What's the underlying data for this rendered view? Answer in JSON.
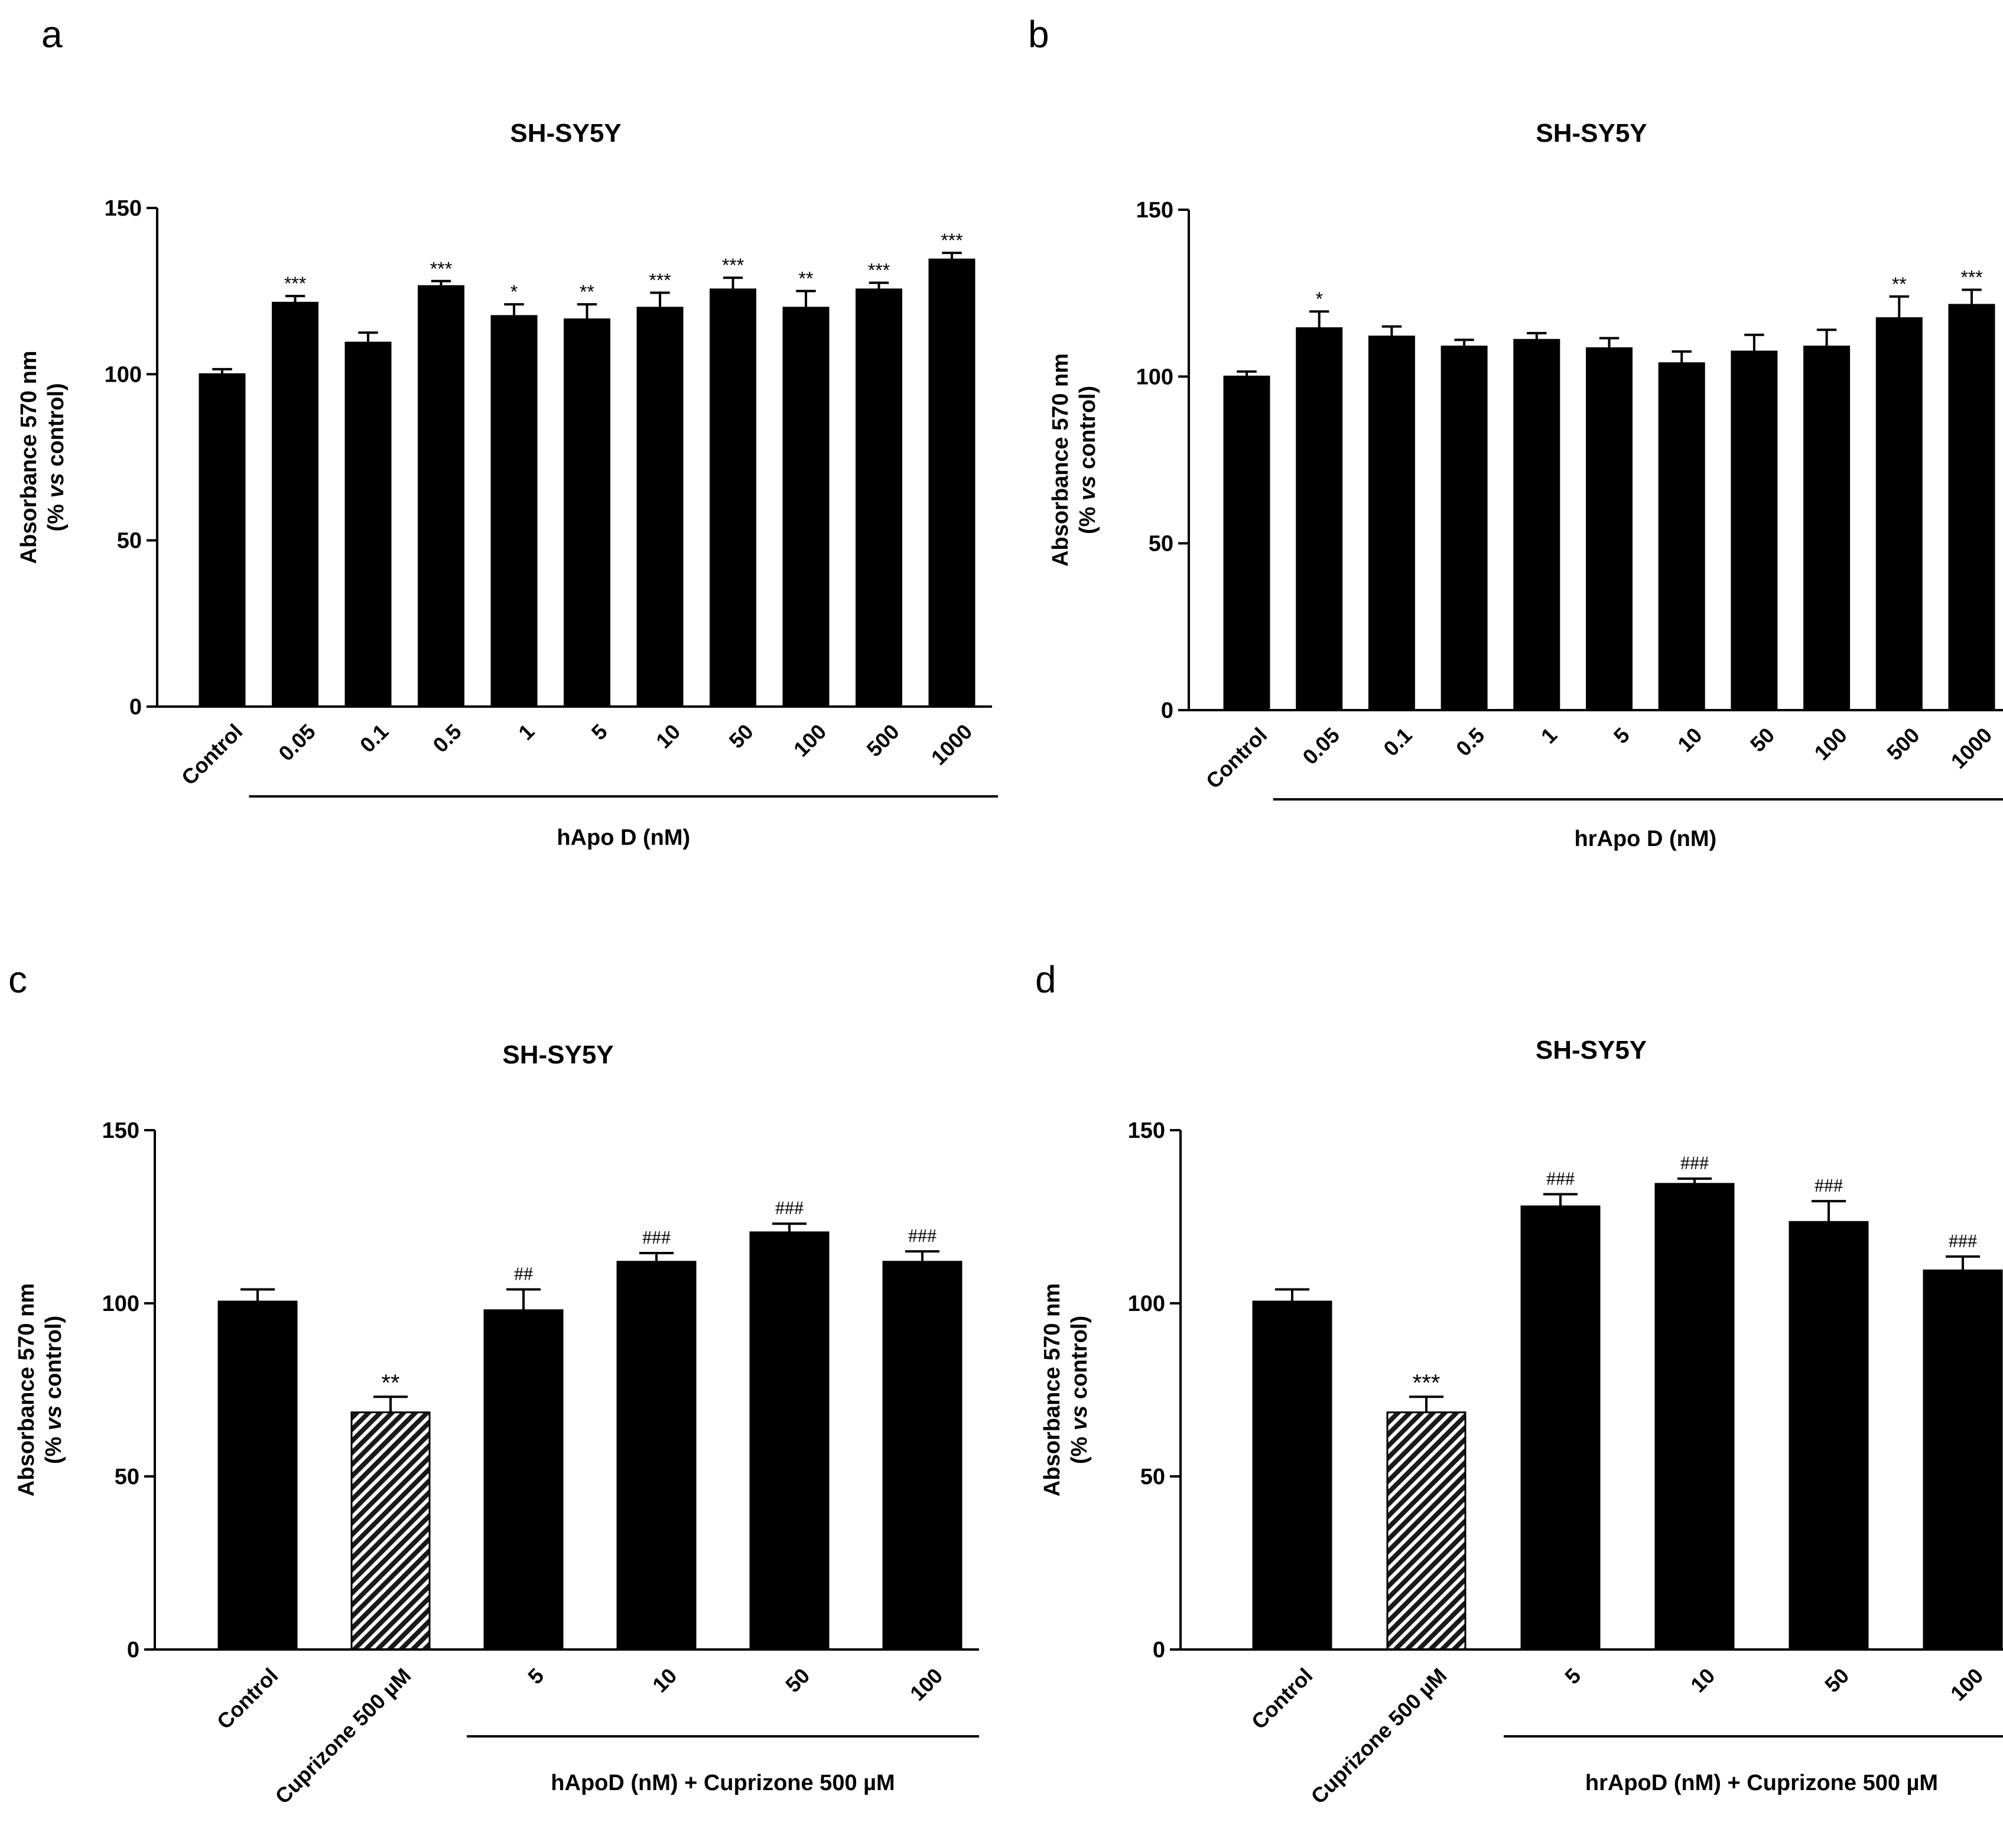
{
  "chart_data": [
    {
      "panel": "a",
      "type": "bar",
      "title": "SH-SY5Y",
      "ylabel_line1": "Absorbance 570 nm",
      "ylabel_line2_pre": "(% ",
      "ylabel_line2_italic": "vs",
      "ylabel_line2_post": " control)",
      "ylim": [
        0,
        150
      ],
      "yticks": [
        0,
        50,
        100,
        150
      ],
      "categories": [
        "Control",
        "0.05",
        "0.1",
        "0.5",
        "1",
        "5",
        "10",
        "50",
        "100",
        "500",
        "1000"
      ],
      "values": [
        100,
        121.5,
        109.5,
        126.5,
        117.5,
        116.5,
        120,
        125.5,
        120,
        125.5,
        134.5
      ],
      "errors": [
        1.5,
        2,
        3,
        1.5,
        3.5,
        4.5,
        4.5,
        3.5,
        5,
        2,
        2
      ],
      "annotations": [
        "",
        "***",
        "",
        "***",
        "*",
        "**",
        "***",
        "***",
        "**",
        "***",
        "***"
      ],
      "patterns": [
        "solid",
        "solid",
        "solid",
        "solid",
        "solid",
        "solid",
        "solid",
        "solid",
        "solid",
        "solid",
        "solid"
      ],
      "group_label": "hApo D (nM)",
      "group_range": [
        1,
        10
      ]
    },
    {
      "panel": "b",
      "type": "bar",
      "title": "SH-SY5Y",
      "ylabel_line1": "Absorbance 570 nm",
      "ylabel_line2_pre": "(% ",
      "ylabel_line2_italic": "vs",
      "ylabel_line2_post": " control)",
      "ylim": [
        0,
        150
      ],
      "yticks": [
        0,
        50,
        100,
        150
      ],
      "categories": [
        "Control",
        "0.05",
        "0.1",
        "0.5",
        "1",
        "5",
        "10",
        "50",
        "100",
        "500",
        "1000"
      ],
      "values": [
        100,
        114.5,
        112,
        109,
        111,
        108.5,
        104,
        107.5,
        109,
        117.5,
        121.5
      ],
      "errors": [
        1.5,
        5,
        3,
        2,
        2,
        3,
        3.5,
        5,
        5,
        6.5,
        4.5
      ],
      "annotations": [
        "",
        "*",
        "",
        "",
        "",
        "",
        "",
        "",
        "",
        "**",
        "***"
      ],
      "patterns": [
        "solid",
        "solid",
        "solid",
        "solid",
        "solid",
        "solid",
        "solid",
        "solid",
        "solid",
        "solid",
        "solid"
      ],
      "group_label": "hrApo D (nM)",
      "group_range": [
        1,
        10
      ]
    },
    {
      "panel": "c",
      "type": "bar",
      "title": "SH-SY5Y",
      "ylabel_line1": "Absorbance 570 nm",
      "ylabel_line2_pre": "(% ",
      "ylabel_line2_italic": "vs",
      "ylabel_line2_post": " control)",
      "ylim": [
        0,
        150
      ],
      "yticks": [
        0,
        50,
        100,
        150
      ],
      "categories": [
        "Control",
        "Cuprizone 500 µM",
        "5",
        "10",
        "50",
        "100"
      ],
      "values": [
        100.5,
        68.5,
        98,
        112,
        120.5,
        112
      ],
      "errors": [
        3.5,
        4.5,
        6,
        2.5,
        2.5,
        3
      ],
      "annotations": [
        "",
        "**",
        "##",
        "###",
        "###",
        "###"
      ],
      "patterns": [
        "solid",
        "hatch",
        "solid",
        "solid",
        "solid",
        "solid"
      ],
      "group_label": "hApoD (nM) + Cuprizone 500 µM",
      "group_range": [
        2,
        5
      ]
    },
    {
      "panel": "d",
      "type": "bar",
      "title": "SH-SY5Y",
      "ylabel_line1": "Absorbance 570 nm",
      "ylabel_line2_pre": "(% ",
      "ylabel_line2_italic": "vs",
      "ylabel_line2_post": " control)",
      "ylim": [
        0,
        150
      ],
      "yticks": [
        0,
        50,
        100,
        150
      ],
      "categories": [
        "Control",
        "Cuprizone 500 µM",
        "5",
        "10",
        "50",
        "100"
      ],
      "values": [
        100.5,
        68.5,
        128,
        134.5,
        123.5,
        109.5
      ],
      "errors": [
        3.5,
        4.5,
        3.5,
        1.5,
        6,
        4
      ],
      "annotations": [
        "",
        "***",
        "###",
        "###",
        "###",
        "###"
      ],
      "patterns": [
        "solid",
        "hatch",
        "solid",
        "solid",
        "solid",
        "solid"
      ],
      "group_label": "hrApoD (nM) + Cuprizone 500 µM",
      "group_range": [
        2,
        5
      ]
    }
  ]
}
